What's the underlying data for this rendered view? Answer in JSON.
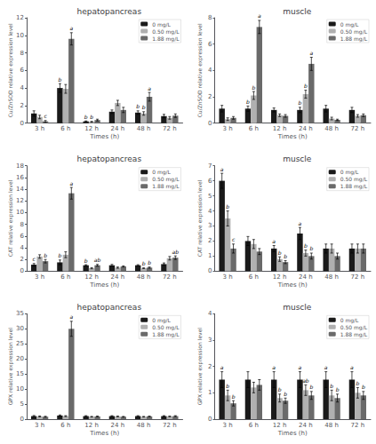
{
  "chart_data": [
    {
      "type": "bar",
      "title": "hepatopancreas",
      "xlabel": "Times (h)",
      "ylabel": "Cu/ZnSOD relative expression level",
      "categories": [
        "3 h",
        "6 h",
        "12 h",
        "24 h",
        "48 h",
        "72 h"
      ],
      "series": [
        {
          "name": "0 mg/L",
          "color": "#1a1a1a",
          "values": [
            1.1,
            4.0,
            0.2,
            1.3,
            1.2,
            0.8
          ],
          "errors": [
            0.3,
            0.5,
            0.05,
            0.2,
            0.2,
            0.2
          ],
          "annotations": [
            null,
            "b",
            "b",
            null,
            "b",
            null
          ]
        },
        {
          "name": "0.50 mg/L",
          "color": "#b0b0b0",
          "values": [
            0.7,
            3.9,
            0.15,
            2.3,
            1.1,
            0.6
          ],
          "errors": [
            0.2,
            0.5,
            0.05,
            0.3,
            0.2,
            0.15
          ],
          "annotations": [
            null,
            null,
            "b",
            null,
            "b",
            null
          ]
        },
        {
          "name": "1.88 mg/L",
          "color": "#6a6a6a",
          "values": [
            0.2,
            9.6,
            0.35,
            1.5,
            3.0,
            0.85
          ],
          "errors": [
            0.1,
            0.7,
            0.1,
            0.3,
            0.5,
            0.2
          ],
          "annotations": [
            "c",
            "a",
            null,
            null,
            "a",
            null
          ]
        }
      ],
      "ylim": [
        0,
        12
      ],
      "yticks": [
        0,
        2,
        4,
        6,
        8,
        10,
        12
      ],
      "grid": false,
      "legend": "upper right"
    },
    {
      "type": "bar",
      "title": "muscle",
      "xlabel": "Times (h)",
      "ylabel": "Cu/ZnSOD relative expression level",
      "categories": [
        "3 h",
        "6 h",
        "12 h",
        "24 h",
        "48 h",
        "72 h"
      ],
      "series": [
        {
          "name": "0 mg/L",
          "color": "#1a1a1a",
          "values": [
            1.1,
            1.1,
            1.0,
            1.0,
            1.1,
            1.0
          ],
          "errors": [
            0.25,
            0.2,
            0.15,
            0.2,
            0.25,
            0.2
          ],
          "annotations": [
            null,
            "b",
            null,
            "b",
            null,
            null
          ]
        },
        {
          "name": "0.50 mg/L",
          "color": "#b0b0b0",
          "values": [
            0.3,
            2.1,
            0.6,
            2.2,
            0.35,
            0.55
          ],
          "errors": [
            0.1,
            0.3,
            0.1,
            0.3,
            0.1,
            0.1
          ],
          "annotations": [
            null,
            "b",
            null,
            "b",
            null,
            null
          ]
        },
        {
          "name": "1.88 mg/L",
          "color": "#6a6a6a",
          "values": [
            0.4,
            7.3,
            0.55,
            4.5,
            0.25,
            0.6
          ],
          "errors": [
            0.1,
            0.5,
            0.1,
            0.5,
            0.05,
            0.1
          ],
          "annotations": [
            null,
            "a",
            null,
            "a",
            null,
            null
          ]
        }
      ],
      "ylim": [
        0,
        8
      ],
      "yticks": [
        0,
        2,
        4,
        6,
        8
      ],
      "grid": false,
      "legend": "upper right"
    },
    {
      "type": "bar",
      "title": "hepatopancreas",
      "xlabel": "Times (h)",
      "ylabel": "CAT relative expression level",
      "categories": [
        "3 h",
        "6 h",
        "12 h",
        "24 h",
        "48 h",
        "72 h"
      ],
      "series": [
        {
          "name": "0 mg/L",
          "color": "#1a1a1a",
          "values": [
            1.1,
            1.5,
            1.0,
            1.0,
            1.0,
            1.2
          ],
          "errors": [
            0.2,
            0.4,
            0.1,
            0.15,
            0.1,
            0.2
          ],
          "annotations": [
            "c",
            "b",
            "b",
            null,
            null,
            null
          ]
        },
        {
          "name": "0.50 mg/L",
          "color": "#b0b0b0",
          "values": [
            2.5,
            2.8,
            0.5,
            0.6,
            0.5,
            2.2
          ],
          "errors": [
            0.3,
            0.5,
            0.1,
            0.1,
            0.05,
            0.3
          ],
          "annotations": [
            null,
            null,
            null,
            null,
            "b",
            null
          ]
        },
        {
          "name": "1.88 mg/L",
          "color": "#6a6a6a",
          "values": [
            1.7,
            13.3,
            1.0,
            0.8,
            0.6,
            2.3
          ],
          "errors": [
            0.3,
            1.0,
            0.15,
            0.1,
            0.1,
            0.3
          ],
          "annotations": [
            "b",
            "a",
            "ab",
            null,
            "b",
            "ab"
          ]
        }
      ],
      "ylim": [
        0,
        18
      ],
      "yticks": [
        0,
        2,
        4,
        6,
        8,
        10,
        12,
        14,
        16,
        18
      ],
      "grid": false,
      "legend": "upper right"
    },
    {
      "type": "bar",
      "title": "muscle",
      "xlabel": "Times (h)",
      "ylabel": "CAT relative expression level",
      "categories": [
        "3 h",
        "6 h",
        "12 h",
        "24 h",
        "48 h",
        "72 h"
      ],
      "series": [
        {
          "name": "0 mg/L",
          "color": "#1a1a1a",
          "values": [
            6.0,
            2.0,
            1.5,
            2.5,
            1.5,
            1.5
          ],
          "errors": [
            0.5,
            0.3,
            0.2,
            0.4,
            0.3,
            0.3
          ],
          "annotations": [
            "a",
            null,
            "a",
            "a",
            null,
            null
          ]
        },
        {
          "name": "0.50 mg/L",
          "color": "#b0b0b0",
          "values": [
            3.5,
            1.8,
            0.8,
            1.2,
            1.5,
            1.5
          ],
          "errors": [
            0.5,
            0.3,
            0.15,
            0.2,
            0.3,
            0.3
          ],
          "annotations": [
            "b",
            null,
            "b",
            "b",
            null,
            null
          ]
        },
        {
          "name": "1.88 mg/L",
          "color": "#6a6a6a",
          "values": [
            1.5,
            1.3,
            0.6,
            1.0,
            1.0,
            1.5
          ],
          "errors": [
            0.3,
            0.2,
            0.1,
            0.2,
            0.2,
            0.3
          ],
          "annotations": [
            "c",
            null,
            "b",
            "b",
            null,
            null
          ]
        }
      ],
      "ylim": [
        0,
        7
      ],
      "yticks": [
        0,
        1,
        2,
        3,
        4,
        5,
        6,
        7
      ],
      "grid": false,
      "legend": "upper right"
    },
    {
      "type": "bar",
      "title": "hepatopancreas",
      "xlabel": "Times (h)",
      "ylabel": "GPX relative expression level",
      "categories": [
        "3 h",
        "6 h",
        "12 h",
        "24 h",
        "48 h",
        "72 h"
      ],
      "series": [
        {
          "name": "0 mg/L",
          "color": "#1a1a1a",
          "values": [
            1.0,
            1.2,
            1.0,
            1.0,
            1.0,
            1.0
          ],
          "errors": [
            0.2,
            0.2,
            0.15,
            0.15,
            0.15,
            0.15
          ],
          "annotations": [
            null,
            null,
            null,
            null,
            null,
            null
          ]
        },
        {
          "name": "0.50 mg/L",
          "color": "#b0b0b0",
          "values": [
            0.9,
            1.0,
            0.8,
            0.9,
            0.8,
            0.9
          ],
          "errors": [
            0.15,
            0.15,
            0.1,
            0.1,
            0.1,
            0.1
          ],
          "annotations": [
            null,
            null,
            null,
            null,
            null,
            null
          ]
        },
        {
          "name": "1.88 mg/L",
          "color": "#6a6a6a",
          "values": [
            0.8,
            30.0,
            0.9,
            0.8,
            0.9,
            1.0
          ],
          "errors": [
            0.15,
            2.5,
            0.1,
            0.1,
            0.1,
            0.15
          ],
          "annotations": [
            null,
            "a",
            null,
            null,
            null,
            null
          ]
        }
      ],
      "ylim": [
        0,
        35
      ],
      "yticks": [
        0,
        5,
        10,
        15,
        20,
        25,
        30,
        35
      ],
      "grid": false,
      "legend": "upper right"
    },
    {
      "type": "bar",
      "title": "muscle",
      "xlabel": "Times (h)",
      "ylabel": "GPX relative expression level",
      "categories": [
        "3 h",
        "6 h",
        "12 h",
        "24 h",
        "48 h",
        "72 h"
      ],
      "series": [
        {
          "name": "0 mg/L",
          "color": "#1a1a1a",
          "values": [
            1.5,
            1.5,
            1.5,
            1.5,
            1.5,
            1.5
          ],
          "errors": [
            0.3,
            0.3,
            0.3,
            0.3,
            0.3,
            0.3
          ],
          "annotations": [
            "a",
            null,
            "a",
            "a",
            "a",
            "a"
          ]
        },
        {
          "name": "0.50 mg/L",
          "color": "#b0b0b0",
          "values": [
            0.9,
            1.2,
            0.8,
            1.1,
            0.9,
            1.0
          ],
          "errors": [
            0.2,
            0.2,
            0.15,
            0.2,
            0.2,
            0.2
          ],
          "annotations": [
            "b",
            null,
            "b",
            "ab",
            "b",
            "b"
          ]
        },
        {
          "name": "1.88 mg/L",
          "color": "#6a6a6a",
          "values": [
            0.6,
            1.3,
            0.7,
            0.9,
            0.8,
            0.9
          ],
          "errors": [
            0.1,
            0.2,
            0.1,
            0.15,
            0.15,
            0.15
          ],
          "annotations": [
            "b",
            null,
            "b",
            "b",
            "b",
            "b"
          ]
        }
      ],
      "ylim": [
        0,
        4
      ],
      "yticks": [
        0,
        1,
        2,
        3,
        4
      ],
      "grid": false,
      "legend": "upper right"
    }
  ]
}
